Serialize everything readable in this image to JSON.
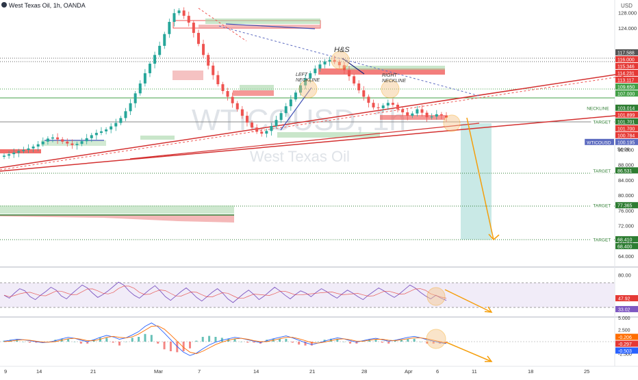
{
  "header": {
    "symbol_title": "West Texas Oil, 1h, OANDA",
    "currency": "USD"
  },
  "watermark": {
    "ticker": "WTICOUSD, 1h",
    "name": "West Texas Oil"
  },
  "annotations": {
    "hs": "H&S",
    "left_neckline": [
      "LEFT",
      "NECKLINE"
    ],
    "right_neckline": [
      "RIGHT",
      "NECKLINE"
    ]
  },
  "colors": {
    "candle_up": "#26a69a",
    "candle_down": "#ef5350",
    "resistance": "#e53935",
    "support_line": "#d32f2f",
    "neckline_green": "#43a047",
    "target_green": "#2e7d32",
    "arrow_orange": "#f59e0b",
    "short_zone": "#b2dfdb",
    "rsi_line": "#7e57c2",
    "rsi_signal": "#e53935",
    "rsi_band": "#ede7f6",
    "macd_line": "#2962ff",
    "macd_signal": "#ff6d00"
  },
  "chart_data": [
    {
      "type": "candlestick",
      "ylim": [
        62,
        131
      ],
      "price_ticks": [
        64,
        68,
        72,
        76,
        80,
        84,
        88,
        92,
        96,
        124,
        128
      ],
      "x_ticks": [
        "9",
        "14",
        "21",
        "Mar",
        "7",
        "14",
        "21",
        "28",
        "Apr",
        "6",
        "11",
        "18",
        "25"
      ],
      "series": [
        {
          "name": "",
          "close": [
            90.4,
            90.8,
            91.2,
            91.6,
            91.9,
            92.3,
            92.8,
            93.4,
            94.1,
            94.9,
            95.2,
            94.7,
            94.1,
            93.6,
            93.2,
            93.5,
            94.2,
            95.0,
            95.8,
            96.4,
            96.8,
            97.3,
            98.1,
            99.0,
            100.3,
            102.1,
            104.2,
            106.8,
            109.4,
            112.1,
            114.6,
            116.9,
            119.3,
            122.4,
            125.6,
            127.9,
            128.6,
            127.2,
            125.4,
            122.7,
            119.8,
            116.9,
            114.1,
            111.6,
            109.2,
            107.4,
            105.9,
            104.2,
            102.6,
            100.9,
            99.1,
            97.8,
            96.7,
            96.2,
            96.9,
            98.2,
            99.8,
            101.6,
            103.4,
            105.2,
            107.0,
            108.9,
            110.7,
            112.1,
            113.3,
            114.4,
            115.2,
            115.6,
            115.1,
            114.2,
            112.9,
            111.3,
            109.4,
            107.6,
            105.9,
            104.3,
            103.1,
            102.9,
            103.6,
            104.3,
            103.8,
            102.6,
            101.8,
            100.9,
            101.5,
            102.6,
            101.7,
            100.5,
            100.7,
            101.3,
            101.0,
            100.4
          ]
        }
      ],
      "price_labels": [
        {
          "label": "",
          "value": "117.588"
        },
        {
          "label": "",
          "value": "116.000"
        },
        {
          "label": "",
          "value": "115.346"
        },
        {
          "label": "",
          "value": "114.231"
        },
        {
          "label": "",
          "value": "113.117"
        },
        {
          "label": "",
          "value": "109.650"
        },
        {
          "label": "",
          "value": "107.000"
        },
        {
          "label": "NECKLINE",
          "value": "103.014"
        },
        {
          "label": "",
          "value": "101.899"
        },
        {
          "label": "TARGET",
          "value": "101.701"
        },
        {
          "label": "",
          "value": "101.700"
        },
        {
          "label": "",
          "value": "100.784"
        },
        {
          "label": "WTICOUSD",
          "value": "100.195"
        },
        {
          "label": "",
          "value": "54:06"
        },
        {
          "label": "TARGET",
          "value": "86.531"
        },
        {
          "label": "TARGET",
          "value": "77.365"
        },
        {
          "label": "TARGET",
          "value": "68.410"
        },
        {
          "label": "",
          "value": "68.400"
        }
      ]
    },
    {
      "type": "line",
      "ylim": [
        25,
        85
      ],
      "ticks": [
        "80.00"
      ],
      "series": [
        {
          "name": "",
          "values": [
            52,
            48,
            55,
            61,
            58,
            50,
            46,
            52,
            57,
            63,
            59,
            51,
            47,
            54,
            60,
            66,
            62,
            55,
            49,
            53,
            58,
            64,
            70,
            66,
            58,
            52,
            48,
            54,
            60,
            65,
            58,
            50,
            45,
            51,
            57,
            62,
            56,
            49,
            44,
            50,
            56,
            61,
            55,
            47,
            42,
            48,
            54,
            59,
            53,
            46,
            51,
            57,
            63,
            58,
            52,
            47,
            53,
            58,
            55,
            50,
            56,
            61,
            57,
            52,
            48,
            54,
            59,
            55,
            50,
            46,
            52,
            57,
            62,
            58,
            53,
            49,
            54,
            60,
            66,
            62,
            56,
            51,
            47,
            52,
            48,
            45
          ]
        }
      ],
      "value_labels": [
        "47.92",
        "33.02"
      ]
    },
    {
      "type": "line",
      "ticks": [
        "5.000",
        "2.500",
        "-2.500"
      ],
      "series": [
        {
          "name": "",
          "values": [
            0.1,
            0.3,
            0.5,
            0.4,
            0.2,
            0.0,
            -0.2,
            -0.1,
            0.2,
            0.6,
            0.9,
            0.7,
            0.3,
            0.0,
            0.4,
            0.9,
            1.3,
            1.0,
            0.5,
            0.8,
            1.4,
            2.1,
            3.2,
            3.9,
            3.1,
            1.8,
            0.4,
            -1.0,
            -2.2,
            -2.9,
            -2.4,
            -1.5,
            -0.7,
            -0.1,
            0.3,
            0.6,
            0.9,
            0.7,
            0.4,
            0.1,
            -0.2,
            0.2,
            0.6,
            0.9,
            1.2,
            0.8,
            0.3,
            -0.2,
            -0.6,
            -0.3,
            0.1,
            0.5,
            0.8,
            0.6,
            0.2,
            -0.1,
            0.2,
            0.5,
            0.7,
            0.4,
            0.1,
            0.3,
            0.6,
            0.9,
            1.1,
            0.8,
            0.4,
            0.1,
            -0.2,
            -0.4
          ]
        },
        {
          "name": "",
          "values": [
            0.0,
            0.1,
            0.3,
            0.4,
            0.3,
            0.1,
            -0.1,
            -0.1,
            0.0,
            0.3,
            0.6,
            0.7,
            0.5,
            0.2,
            0.2,
            0.5,
            0.9,
            1.1,
            0.9,
            0.8,
            1.0,
            1.6,
            2.4,
            3.2,
            3.3,
            2.6,
            1.4,
            0.1,
            -1.2,
            -2.2,
            -2.5,
            -2.0,
            -1.3,
            -0.6,
            -0.1,
            0.3,
            0.6,
            0.7,
            0.5,
            0.2,
            0.0,
            0.0,
            0.3,
            0.6,
            0.9,
            0.9,
            0.6,
            0.2,
            -0.2,
            -0.3,
            -0.1,
            0.2,
            0.5,
            0.6,
            0.4,
            0.1,
            0.1,
            0.3,
            0.5,
            0.5,
            0.3,
            0.2,
            0.4,
            0.6,
            0.8,
            0.8,
            0.6,
            0.3,
            0.0,
            -0.3
          ]
        }
      ],
      "value_labels": [
        "-0.206",
        "-0.297",
        "-0.503"
      ]
    }
  ]
}
